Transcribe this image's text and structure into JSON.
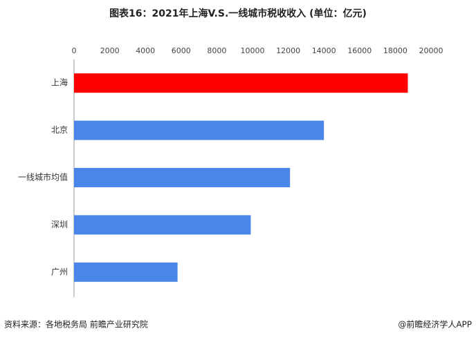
{
  "chart_data": {
    "type": "bar",
    "orientation": "horizontal",
    "title": "图表16：2021年上海V.S.一线城市税收收入 (单位：亿元)",
    "categories": [
      "上海",
      "北京",
      "一线城市均值",
      "深圳",
      "广州"
    ],
    "values": [
      18700,
      14000,
      12100,
      9900,
      5800
    ],
    "colors": [
      "#ff0000",
      "#4a86e8",
      "#4a86e8",
      "#4a86e8",
      "#4a86e8"
    ],
    "xlim": [
      0,
      20000
    ],
    "xticks": [
      0,
      2000,
      4000,
      6000,
      8000,
      10000,
      12000,
      14000,
      16000,
      18000,
      20000
    ],
    "grid": false,
    "source": "资料来源：各地税务局 前瞻产业研究院",
    "credit": "@前瞻经济学人APP"
  }
}
